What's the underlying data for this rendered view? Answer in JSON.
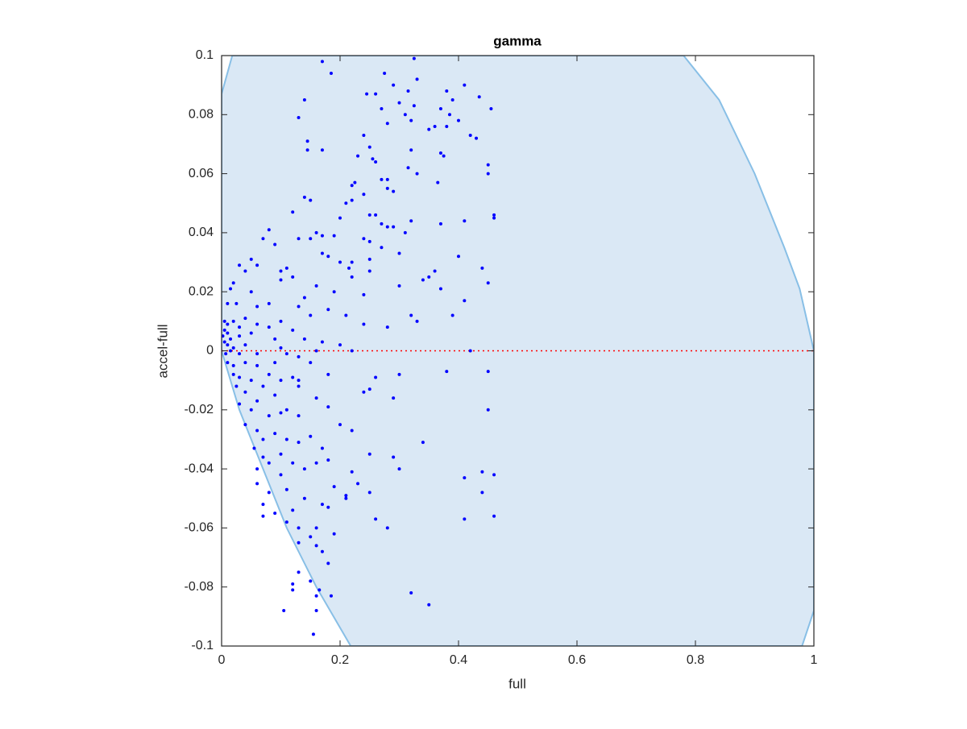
{
  "chart_data": {
    "type": "scatter",
    "title": "gamma",
    "x_label": "full",
    "y_label": "accel-full",
    "xlim": [
      0,
      1
    ],
    "ylim": [
      -0.1,
      0.1
    ],
    "xticks": [
      0,
      0.2,
      0.4,
      0.6,
      0.8,
      1
    ],
    "yticks": [
      -0.1,
      -0.08,
      -0.06,
      -0.04,
      -0.02,
      0,
      0.02,
      0.04,
      0.06,
      0.08,
      0.1
    ],
    "region": {
      "color": "#dae8f5",
      "edge_color": "#88bfe6",
      "x": [
        0,
        0.018,
        0.78,
        0.84,
        0.9,
        0.95,
        0.976,
        1,
        1,
        0.98,
        0.218,
        0.16,
        0.11,
        0.07,
        0.03,
        0
      ],
      "y": [
        0.087,
        0.1,
        0.1,
        0.085,
        0.06,
        0.035,
        0.021,
        0,
        -0.088,
        -0.1,
        -0.1,
        -0.08,
        -0.06,
        -0.04,
        -0.02,
        0
      ]
    },
    "reference_line": {
      "y": 0,
      "color": "#ff0000"
    },
    "series": [
      {
        "color": "#0000ff",
        "x": [
          0.17,
          0.185,
          0.325,
          0.275,
          0.33,
          0.29,
          0.315,
          0.245,
          0.26,
          0.38,
          0.41,
          0.435,
          0.455,
          0.14,
          0.13,
          0.3,
          0.27,
          0.325,
          0.37,
          0.385,
          0.39,
          0.4,
          0.31,
          0.32,
          0.28,
          0.36,
          0.35,
          0.38,
          0.42,
          0.43,
          0.24,
          0.145,
          0.145,
          0.17,
          0.25,
          0.32,
          0.37,
          0.375,
          0.23,
          0.255,
          0.26,
          0.45,
          0.45,
          0.315,
          0.33,
          0.225,
          0.22,
          0.27,
          0.28,
          0.365,
          0.28,
          0.29,
          0.14,
          0.15,
          0.24,
          0.22,
          0.21,
          0.12,
          0.25,
          0.26,
          0.2,
          0.46,
          0.46,
          0.41,
          0.37,
          0.32,
          0.27,
          0.28,
          0.29,
          0.31,
          0.08,
          0.16,
          0.17,
          0.15,
          0.13,
          0.19,
          0.24,
          0.25,
          0.07,
          0.09,
          0.05,
          0.06,
          0.17,
          0.18,
          0.2,
          0.22,
          0.25,
          0.27,
          0.3,
          0.4,
          0.03,
          0.04,
          0.1,
          0.11,
          0.12,
          0.215,
          0.22,
          0.25,
          0.36,
          0.44,
          0.34,
          0.35,
          0.45,
          0.02,
          0.015,
          0.05,
          0.1,
          0.14,
          0.16,
          0.19,
          0.24,
          0.3,
          0.37,
          0.41,
          0.01,
          0.025,
          0.06,
          0.08,
          0.13,
          0.15,
          0.18,
          0.21,
          0.32,
          0.33,
          0.24,
          0.28,
          0.39,
          0.005,
          0.01,
          0.02,
          0.03,
          0.04,
          0.06,
          0.08,
          0.1,
          0.12,
          0.005,
          0.01,
          0.002,
          0.015,
          0.03,
          0.05,
          0.09,
          0.14,
          0.17,
          0.2,
          0.005,
          0.01,
          0.02,
          0.04,
          0.1,
          0.015,
          0.007,
          0.03,
          0.06,
          0.11,
          0.13,
          0.16,
          0.22,
          0.42,
          0.01,
          0.02,
          0.04,
          0.06,
          0.09,
          0.15,
          0.02,
          0.03,
          0.05,
          0.08,
          0.1,
          0.12,
          0.13,
          0.18,
          0.26,
          0.3,
          0.38,
          0.45,
          0.025,
          0.04,
          0.07,
          0.09,
          0.13,
          0.16,
          0.24,
          0.25,
          0.29,
          0.03,
          0.05,
          0.06,
          0.08,
          0.1,
          0.11,
          0.13,
          0.18,
          0.2,
          0.22,
          0.45,
          0.04,
          0.06,
          0.07,
          0.09,
          0.11,
          0.13,
          0.15,
          0.17,
          0.055,
          0.07,
          0.08,
          0.1,
          0.12,
          0.16,
          0.18,
          0.25,
          0.29,
          0.3,
          0.34,
          0.06,
          0.1,
          0.14,
          0.22,
          0.23,
          0.44,
          0.46,
          0.41,
          0.06,
          0.08,
          0.11,
          0.14,
          0.19,
          0.21,
          0.25,
          0.44,
          0.07,
          0.09,
          0.12,
          0.17,
          0.18,
          0.21,
          0.07,
          0.11,
          0.13,
          0.16,
          0.19,
          0.26,
          0.28,
          0.41,
          0.46,
          0.13,
          0.15,
          0.17,
          0.16,
          0.13,
          0.18,
          0.15,
          0.12,
          0.12,
          0.165,
          0.16,
          0.185,
          0.32,
          0.35,
          0.105,
          0.16,
          0.155
        ],
        "y": [
          0.098,
          0.094,
          0.099,
          0.094,
          0.092,
          0.09,
          0.088,
          0.087,
          0.087,
          0.088,
          0.09,
          0.086,
          0.082,
          0.085,
          0.079,
          0.084,
          0.082,
          0.083,
          0.082,
          0.08,
          0.085,
          0.078,
          0.08,
          0.078,
          0.077,
          0.076,
          0.075,
          0.076,
          0.073,
          0.072,
          0.073,
          0.071,
          0.068,
          0.068,
          0.069,
          0.068,
          0.067,
          0.066,
          0.066,
          0.065,
          0.064,
          0.063,
          0.06,
          0.062,
          0.06,
          0.057,
          0.056,
          0.058,
          0.058,
          0.057,
          0.055,
          0.054,
          0.052,
          0.051,
          0.053,
          0.051,
          0.05,
          0.047,
          0.046,
          0.046,
          0.045,
          0.046,
          0.045,
          0.044,
          0.043,
          0.044,
          0.043,
          0.042,
          0.042,
          0.04,
          0.041,
          0.04,
          0.039,
          0.038,
          0.038,
          0.039,
          0.038,
          0.037,
          0.038,
          0.036,
          0.031,
          0.029,
          0.033,
          0.032,
          0.03,
          0.03,
          0.031,
          0.035,
          0.033,
          0.032,
          0.029,
          0.027,
          0.027,
          0.028,
          0.025,
          0.028,
          0.025,
          0.027,
          0.027,
          0.028,
          0.024,
          0.025,
          0.023,
          0.023,
          0.021,
          0.02,
          0.024,
          0.018,
          0.022,
          0.02,
          0.019,
          0.022,
          0.021,
          0.017,
          0.016,
          0.016,
          0.015,
          0.016,
          0.015,
          0.012,
          0.014,
          0.012,
          0.012,
          0.01,
          0.009,
          0.008,
          0.012,
          0.01,
          0.009,
          0.01,
          0.008,
          0.011,
          0.009,
          0.008,
          0.01,
          0.007,
          0.007,
          0.006,
          0.005,
          0.004,
          0.005,
          0.006,
          0.004,
          0.004,
          0.003,
          0.002,
          0.003,
          0.002,
          0.001,
          0.002,
          0.001,
          0,
          -0.001,
          -0.001,
          -0.001,
          -0.001,
          -0.002,
          0,
          0,
          0,
          -0.004,
          -0.005,
          -0.004,
          -0.005,
          -0.004,
          -0.004,
          -0.008,
          -0.009,
          -0.01,
          -0.008,
          -0.01,
          -0.009,
          -0.01,
          -0.008,
          -0.009,
          -0.008,
          -0.007,
          -0.007,
          -0.012,
          -0.014,
          -0.012,
          -0.015,
          -0.012,
          -0.016,
          -0.014,
          -0.013,
          -0.016,
          -0.018,
          -0.02,
          -0.017,
          -0.022,
          -0.021,
          -0.02,
          -0.022,
          -0.019,
          -0.025,
          -0.027,
          -0.02,
          -0.025,
          -0.027,
          -0.03,
          -0.028,
          -0.03,
          -0.031,
          -0.029,
          -0.033,
          -0.033,
          -0.036,
          -0.038,
          -0.035,
          -0.038,
          -0.038,
          -0.037,
          -0.035,
          -0.036,
          -0.04,
          -0.031,
          -0.04,
          -0.042,
          -0.04,
          -0.041,
          -0.045,
          -0.041,
          -0.042,
          -0.043,
          -0.045,
          -0.048,
          -0.047,
          -0.05,
          -0.046,
          -0.049,
          -0.048,
          -0.048,
          -0.052,
          -0.055,
          -0.054,
          -0.052,
          -0.053,
          -0.05,
          -0.056,
          -0.058,
          -0.06,
          -0.06,
          -0.062,
          -0.057,
          -0.06,
          -0.057,
          -0.056,
          -0.065,
          -0.063,
          -0.068,
          -0.066,
          -0.075,
          -0.072,
          -0.078,
          -0.079,
          -0.081,
          -0.081,
          -0.083,
          -0.083,
          -0.082,
          -0.086,
          -0.088,
          -0.088,
          -0.096
        ]
      }
    ]
  }
}
